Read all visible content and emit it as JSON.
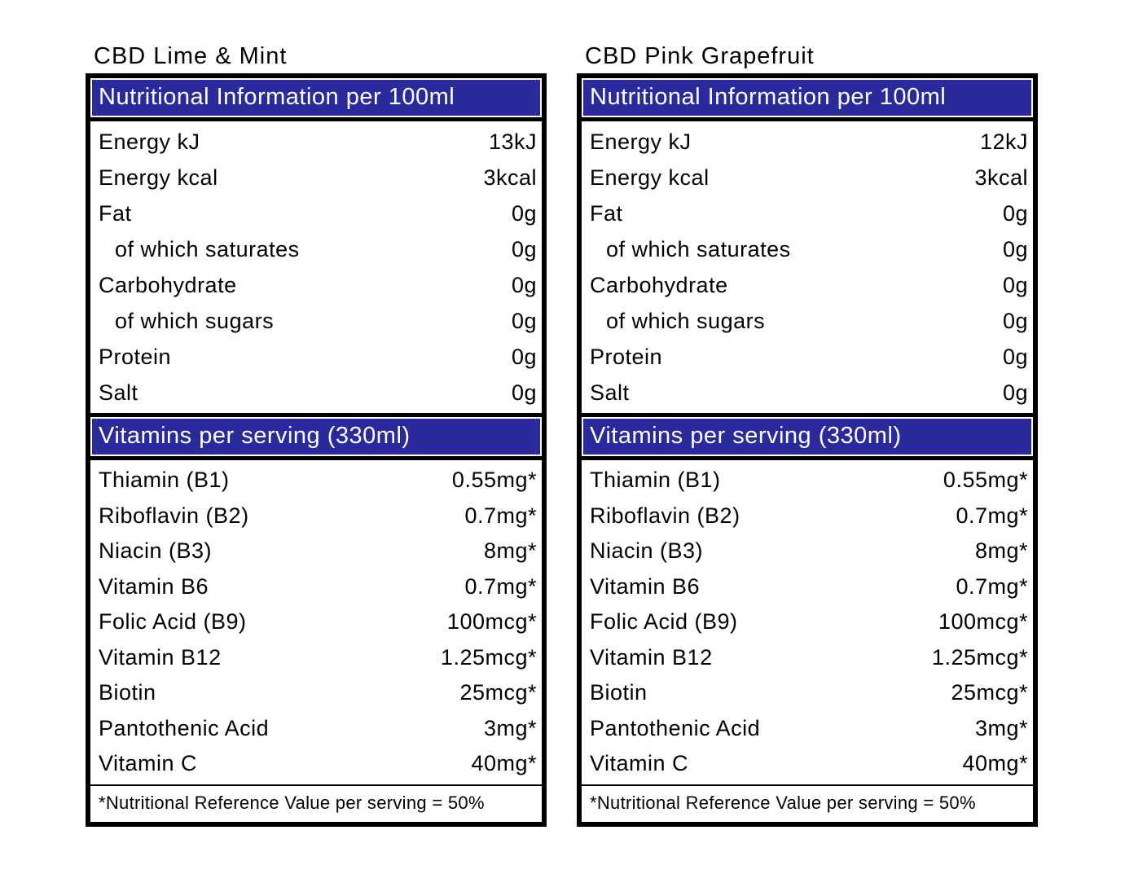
{
  "colors": {
    "header_bg": "#2B2A9D",
    "header_text": "#FFFFFF",
    "border": "#000000",
    "text": "#000000",
    "background": "#FFFFFF"
  },
  "tables": [
    {
      "title": "CBD Lime & Mint",
      "nutrition_header": "Nutritional Information per 100ml",
      "nutrition_rows": [
        {
          "label": "Energy kJ",
          "value": "13kJ"
        },
        {
          "label": "Energy kcal",
          "value": "3kcal"
        },
        {
          "label": "Fat",
          "value": "0g"
        },
        {
          "label": "of which saturates",
          "value": "0g",
          "indent": true
        },
        {
          "label": "Carbohydrate",
          "value": "0g"
        },
        {
          "label": "of which sugars",
          "value": "0g",
          "indent": true
        },
        {
          "label": "Protein",
          "value": "0g"
        },
        {
          "label": "Salt",
          "value": "0g"
        }
      ],
      "vitamins_header": "Vitamins per serving (330ml)",
      "vitamin_rows": [
        {
          "label": "Thiamin (B1)",
          "value": "0.55mg*"
        },
        {
          "label": "Riboflavin (B2)",
          "value": "0.7mg*"
        },
        {
          "label": "Niacin (B3)",
          "value": "8mg*"
        },
        {
          "label": "Vitamin B6",
          "value": "0.7mg*"
        },
        {
          "label": "Folic Acid (B9)",
          "value": "100mcg*"
        },
        {
          "label": "Vitamin B12",
          "value": "1.25mcg*"
        },
        {
          "label": "Biotin",
          "value": "25mcg*"
        },
        {
          "label": "Pantothenic Acid",
          "value": "3mg*"
        },
        {
          "label": "Vitamin C",
          "value": "40mg*"
        }
      ],
      "footnote": "*Nutritional Reference Value per serving = 50%"
    },
    {
      "title": "CBD Pink Grapefruit",
      "nutrition_header": "Nutritional Information per 100ml",
      "nutrition_rows": [
        {
          "label": "Energy kJ",
          "value": "12kJ"
        },
        {
          "label": "Energy kcal",
          "value": "3kcal"
        },
        {
          "label": "Fat",
          "value": "0g"
        },
        {
          "label": "of which saturates",
          "value": "0g",
          "indent": true
        },
        {
          "label": "Carbohydrate",
          "value": "0g"
        },
        {
          "label": "of which sugars",
          "value": "0g",
          "indent": true
        },
        {
          "label": "Protein",
          "value": "0g"
        },
        {
          "label": "Salt",
          "value": "0g"
        }
      ],
      "vitamins_header": "Vitamins per serving (330ml)",
      "vitamin_rows": [
        {
          "label": "Thiamin (B1)",
          "value": "0.55mg*"
        },
        {
          "label": "Riboflavin (B2)",
          "value": "0.7mg*"
        },
        {
          "label": "Niacin (B3)",
          "value": "8mg*"
        },
        {
          "label": "Vitamin B6",
          "value": "0.7mg*"
        },
        {
          "label": "Folic Acid (B9)",
          "value": "100mcg*"
        },
        {
          "label": "Vitamin B12",
          "value": "1.25mcg*"
        },
        {
          "label": "Biotin",
          "value": "25mcg*"
        },
        {
          "label": "Pantothenic Acid",
          "value": "3mg*"
        },
        {
          "label": "Vitamin C",
          "value": "40mg*"
        }
      ],
      "footnote": "*Nutritional Reference Value per serving = 50%"
    }
  ]
}
